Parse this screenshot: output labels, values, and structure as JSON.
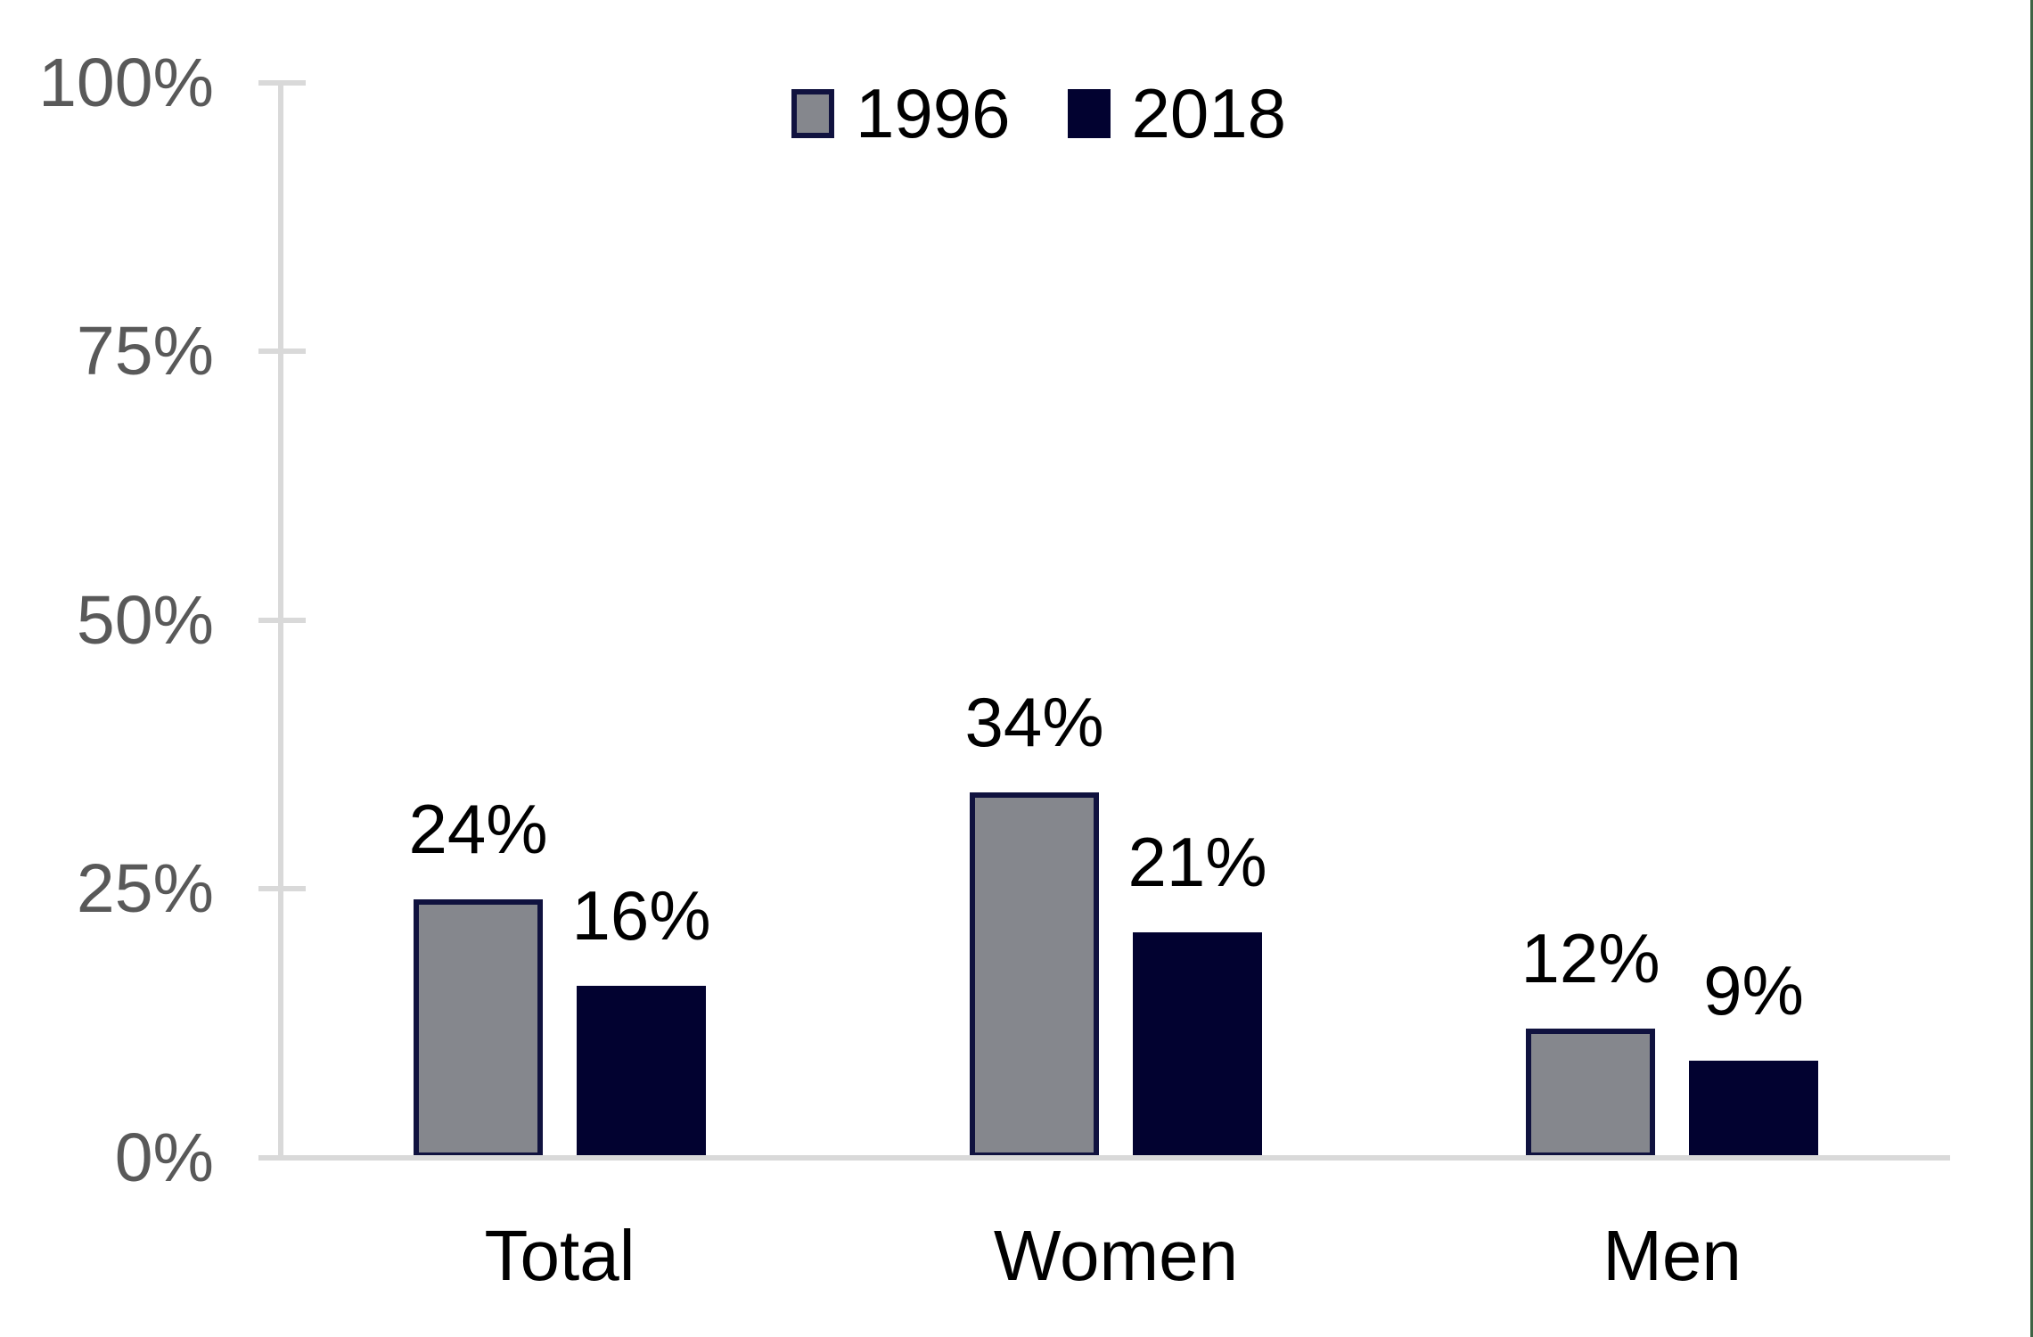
{
  "chart_data": {
    "type": "bar",
    "title": "",
    "categories": [
      "Total",
      "Women",
      "Men"
    ],
    "series": [
      {
        "name": "1996",
        "values": [
          24,
          34,
          12
        ],
        "labels": [
          "24%",
          "34%",
          "12%"
        ],
        "fill": "#85878D",
        "border": "#10123F"
      },
      {
        "name": "2018",
        "values": [
          16,
          21,
          9
        ],
        "labels": [
          "16%",
          "21%",
          "9%"
        ],
        "fill": "#020230",
        "border": "#020230"
      }
    ],
    "y_axis": {
      "min": 0,
      "max": 100,
      "tick_values": [
        0,
        25,
        50,
        75,
        100
      ],
      "tick_labels": [
        "0%",
        "25%",
        "50%",
        "75%",
        "100%"
      ]
    },
    "legend": {
      "position": "top-center",
      "entries": [
        "1996",
        "2018"
      ]
    },
    "grid": false,
    "colors": {
      "axis_line": "#D9D9D9",
      "tick_label": "#595959",
      "data_label": "#000000",
      "category_label": "#000000",
      "legend_label": "#000000",
      "background": "#FFFFFF",
      "page_edge_line": "#3E6243"
    }
  }
}
